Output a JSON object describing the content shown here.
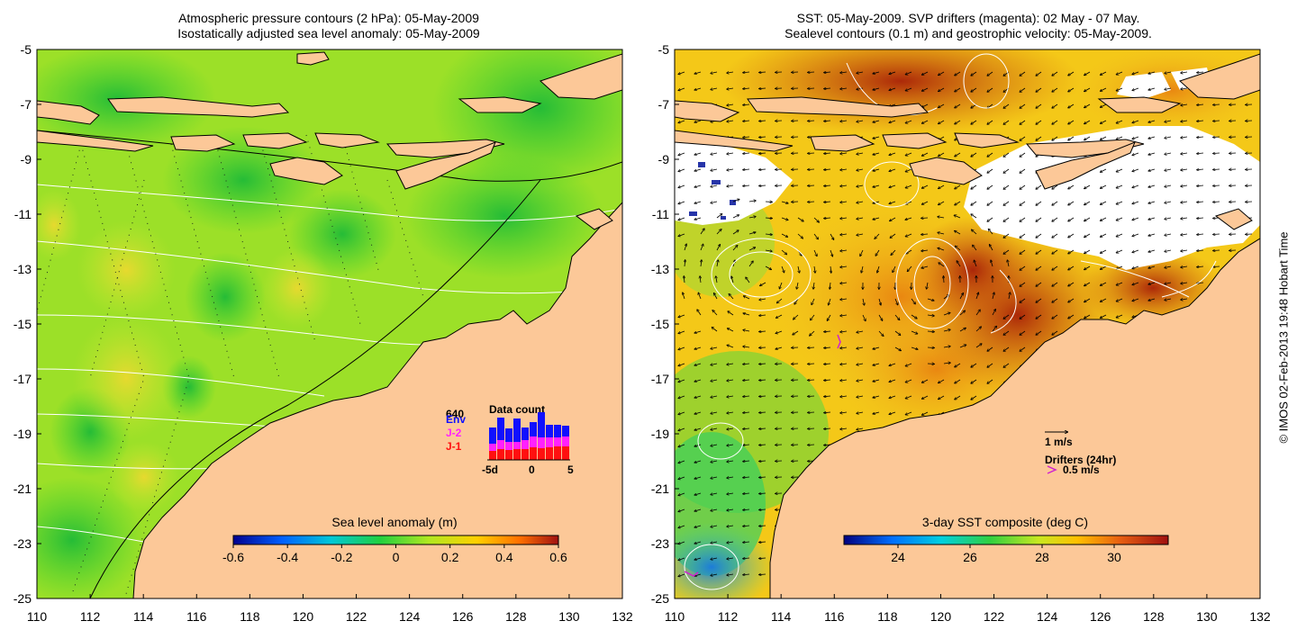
{
  "left_panel": {
    "title_line1": "Atmospheric pressure contours (2 hPa): 05-May-2009",
    "title_line2": "Isostatically adjusted sea level anomaly: 05-May-2009",
    "colorbar": {
      "label": "Sea level anomaly (m)",
      "ticks": [
        "-0.6",
        "-0.4",
        "-0.2",
        "0",
        "0.2",
        "0.4",
        "0.6"
      ],
      "range": [
        -0.6,
        0.6
      ]
    },
    "data_count": {
      "title": "Data count",
      "top_value": "640",
      "legend": [
        "Env",
        "J-2",
        "J-1"
      ],
      "legend_colors": [
        "#1010ff",
        "#ff20ff",
        "#ff1010"
      ],
      "xticks": [
        "-5d",
        "0",
        "5"
      ]
    }
  },
  "right_panel": {
    "title_line1": "SST: 05-May-2009. SVP drifters (magenta): 02 May - 07 May.",
    "title_line2": "Sealevel contours (0.1 m) and geostrophic velocity: 05-May-2009.",
    "colorbar": {
      "label": "3-day SST composite (deg C)",
      "ticks": [
        "24",
        "26",
        "28",
        "30"
      ],
      "range": [
        22.5,
        31.5
      ]
    },
    "velocity_scale_label": "1 m/s",
    "drifters_label": "Drifters (24hr)",
    "drifter_speed_label": "0.5 m/s"
  },
  "axes": {
    "x_ticks": [
      "110",
      "112",
      "114",
      "116",
      "118",
      "120",
      "122",
      "124",
      "126",
      "128",
      "130",
      "132"
    ],
    "y_ticks": [
      "-5",
      "-7",
      "-9",
      "-11",
      "-13",
      "-15",
      "-17",
      "-19",
      "-21",
      "-23",
      "-25"
    ],
    "lon_range": [
      110,
      132
    ],
    "lat_range": [
      -25,
      -5
    ]
  },
  "credit": "© IMOS 02-Feb-2013 19:48 Hobart Time",
  "colors": {
    "land": "#fcc898",
    "ocean_green": "#40d830",
    "ocean_yellow_green": "#b8e820",
    "sst_warm": "#c85010",
    "sst_hot": "#a82008"
  }
}
